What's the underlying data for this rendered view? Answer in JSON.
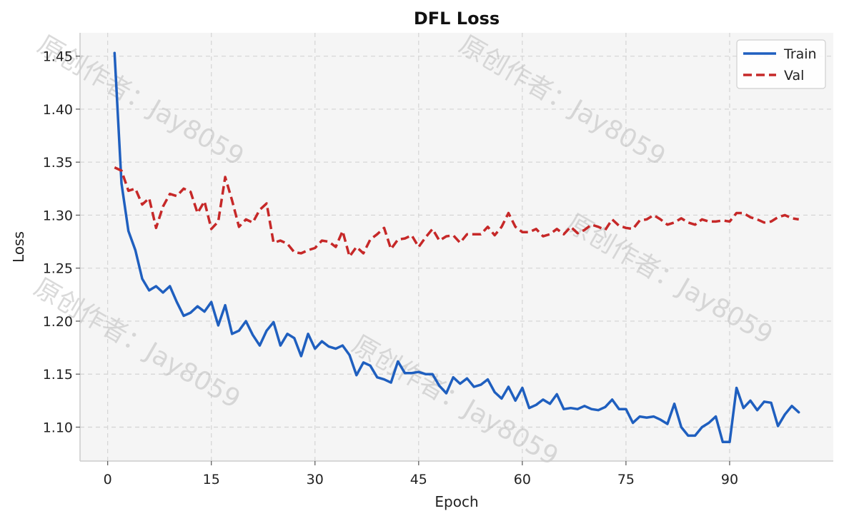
{
  "chart_data": {
    "type": "line",
    "title": "DFL Loss",
    "xlabel": "Epoch",
    "ylabel": "Loss",
    "xlim": [
      -4,
      105
    ],
    "ylim": [
      1.068,
      1.472
    ],
    "xticks": [
      0,
      15,
      30,
      45,
      60,
      75,
      90
    ],
    "yticks": [
      1.1,
      1.15,
      1.2,
      1.25,
      1.3,
      1.35,
      1.4,
      1.45
    ],
    "grid": true,
    "legend_position": "top-right",
    "watermark": "原创作者：Jay8059",
    "x": [
      1,
      2,
      3,
      4,
      5,
      6,
      7,
      8,
      9,
      10,
      11,
      12,
      13,
      14,
      15,
      16,
      17,
      18,
      19,
      20,
      21,
      22,
      23,
      24,
      25,
      26,
      27,
      28,
      29,
      30,
      31,
      32,
      33,
      34,
      35,
      36,
      37,
      38,
      39,
      40,
      41,
      42,
      43,
      44,
      45,
      46,
      47,
      48,
      49,
      50,
      51,
      52,
      53,
      54,
      55,
      56,
      57,
      58,
      59,
      60,
      61,
      62,
      63,
      64,
      65,
      66,
      67,
      68,
      69,
      70,
      71,
      72,
      73,
      74,
      75,
      76,
      77,
      78,
      79,
      80,
      81,
      82,
      83,
      84,
      85,
      86,
      87,
      88,
      89,
      90,
      91,
      92,
      93,
      94,
      95,
      96,
      97,
      98,
      99,
      100
    ],
    "series": [
      {
        "name": "Train",
        "color": "#1f5fbf",
        "style": "solid",
        "values": [
          1.453,
          1.33,
          1.285,
          1.267,
          1.24,
          1.229,
          1.233,
          1.227,
          1.233,
          1.218,
          1.205,
          1.208,
          1.214,
          1.209,
          1.218,
          1.196,
          1.215,
          1.188,
          1.191,
          1.2,
          1.187,
          1.177,
          1.191,
          1.199,
          1.177,
          1.188,
          1.184,
          1.167,
          1.188,
          1.174,
          1.181,
          1.176,
          1.174,
          1.177,
          1.168,
          1.149,
          1.161,
          1.158,
          1.147,
          1.145,
          1.142,
          1.162,
          1.151,
          1.151,
          1.152,
          1.15,
          1.15,
          1.139,
          1.132,
          1.147,
          1.141,
          1.146,
          1.138,
          1.14,
          1.145,
          1.133,
          1.127,
          1.138,
          1.125,
          1.137,
          1.118,
          1.121,
          1.126,
          1.122,
          1.131,
          1.117,
          1.118,
          1.117,
          1.12,
          1.117,
          1.116,
          1.119,
          1.126,
          1.117,
          1.117,
          1.104,
          1.11,
          1.109,
          1.11,
          1.107,
          1.103,
          1.122,
          1.1,
          1.092,
          1.092,
          1.1,
          1.104,
          1.11,
          1.086,
          1.086,
          1.137,
          1.118,
          1.125,
          1.116,
          1.124,
          1.123,
          1.101,
          1.112,
          1.12,
          1.114
        ]
      },
      {
        "name": "Val",
        "color": "#c62828",
        "style": "dashed",
        "values": [
          1.345,
          1.342,
          1.323,
          1.325,
          1.31,
          1.316,
          1.288,
          1.308,
          1.32,
          1.318,
          1.325,
          1.322,
          1.302,
          1.313,
          1.287,
          1.294,
          1.336,
          1.314,
          1.289,
          1.296,
          1.293,
          1.305,
          1.311,
          1.274,
          1.276,
          1.273,
          1.265,
          1.264,
          1.267,
          1.269,
          1.276,
          1.275,
          1.27,
          1.285,
          1.261,
          1.27,
          1.264,
          1.277,
          1.282,
          1.288,
          1.268,
          1.277,
          1.278,
          1.281,
          1.27,
          1.279,
          1.287,
          1.276,
          1.28,
          1.281,
          1.274,
          1.282,
          1.282,
          1.282,
          1.289,
          1.281,
          1.289,
          1.302,
          1.289,
          1.284,
          1.284,
          1.287,
          1.28,
          1.282,
          1.287,
          1.282,
          1.289,
          1.283,
          1.286,
          1.291,
          1.289,
          1.286,
          1.296,
          1.29,
          1.288,
          1.287,
          1.295,
          1.296,
          1.3,
          1.296,
          1.291,
          1.293,
          1.297,
          1.293,
          1.291,
          1.296,
          1.294,
          1.294,
          1.295,
          1.294,
          1.302,
          1.302,
          1.298,
          1.296,
          1.293,
          1.294,
          1.298,
          1.3,
          1.297,
          1.296
        ]
      }
    ]
  }
}
